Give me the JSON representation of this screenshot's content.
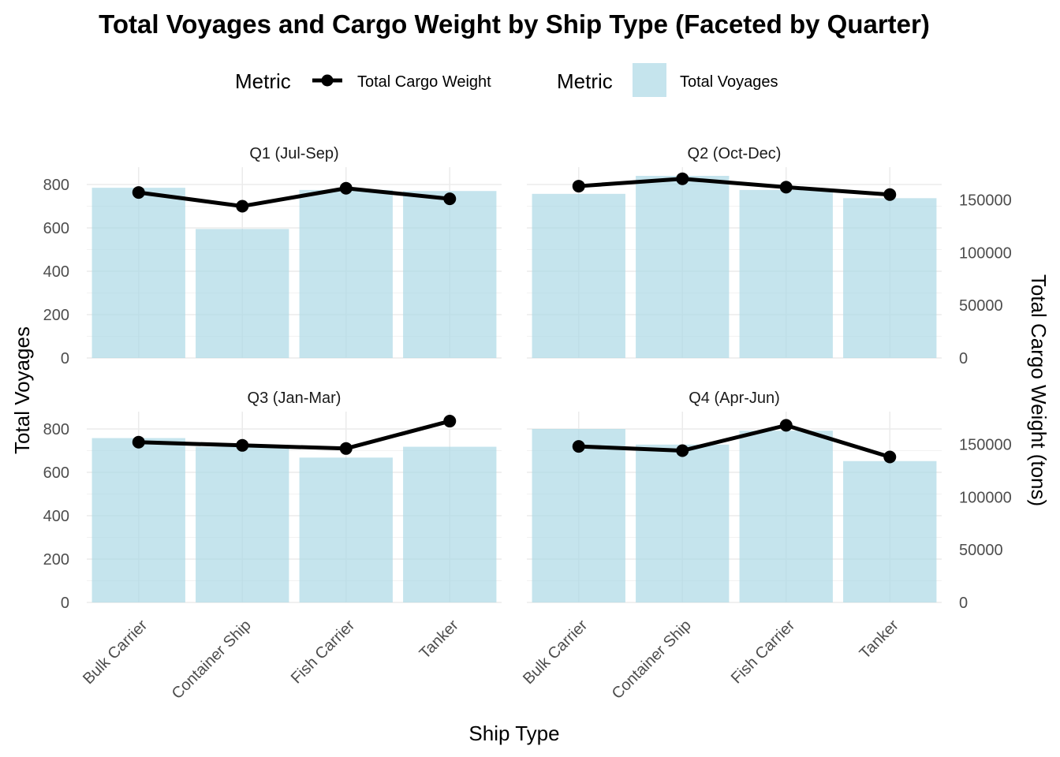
{
  "chart_data": {
    "type": "bar",
    "title": "Total Voyages and Cargo Weight by Ship Type (Faceted by Quarter)",
    "xlabel": "Ship Type",
    "ylabel": "Total Voyages",
    "y2label": "Total Cargo Weight (tons)",
    "categories": [
      "Bulk Carrier",
      "Container Ship",
      "Fish Carrier",
      "Tanker"
    ],
    "ylim": [
      0,
      880
    ],
    "y2lim": [
      0,
      181000
    ],
    "yticks": [
      0,
      200,
      400,
      600,
      800
    ],
    "y2ticks": [
      0,
      50000,
      100000,
      150000
    ],
    "legend": {
      "position": "top",
      "line_title": "Metric",
      "line_label": "Total Cargo Weight",
      "bar_title": "Metric",
      "bar_label": "Total Voyages"
    },
    "colors": {
      "bar": "#add8e6",
      "line": "#000000",
      "grid": "#ebebeb"
    },
    "grid": true,
    "facets": [
      {
        "label": "Q1 (Jul-Sep)",
        "voyages": [
          785,
          595,
          775,
          770
        ],
        "cargo_weight": [
          157000,
          144000,
          161000,
          151000
        ]
      },
      {
        "label": "Q2 (Oct-Dec)",
        "voyages": [
          757,
          840,
          775,
          737
        ],
        "cargo_weight": [
          163000,
          170000,
          162000,
          155000
        ]
      },
      {
        "label": "Q3 (Jan-Mar)",
        "voyages": [
          758,
          718,
          668,
          718
        ],
        "cargo_weight": [
          152000,
          149000,
          146000,
          172000
        ]
      },
      {
        "label": "Q4 (Apr-Jun)",
        "voyages": [
          800,
          728,
          792,
          652
        ],
        "cargo_weight": [
          148000,
          144000,
          168000,
          138000
        ]
      }
    ]
  }
}
